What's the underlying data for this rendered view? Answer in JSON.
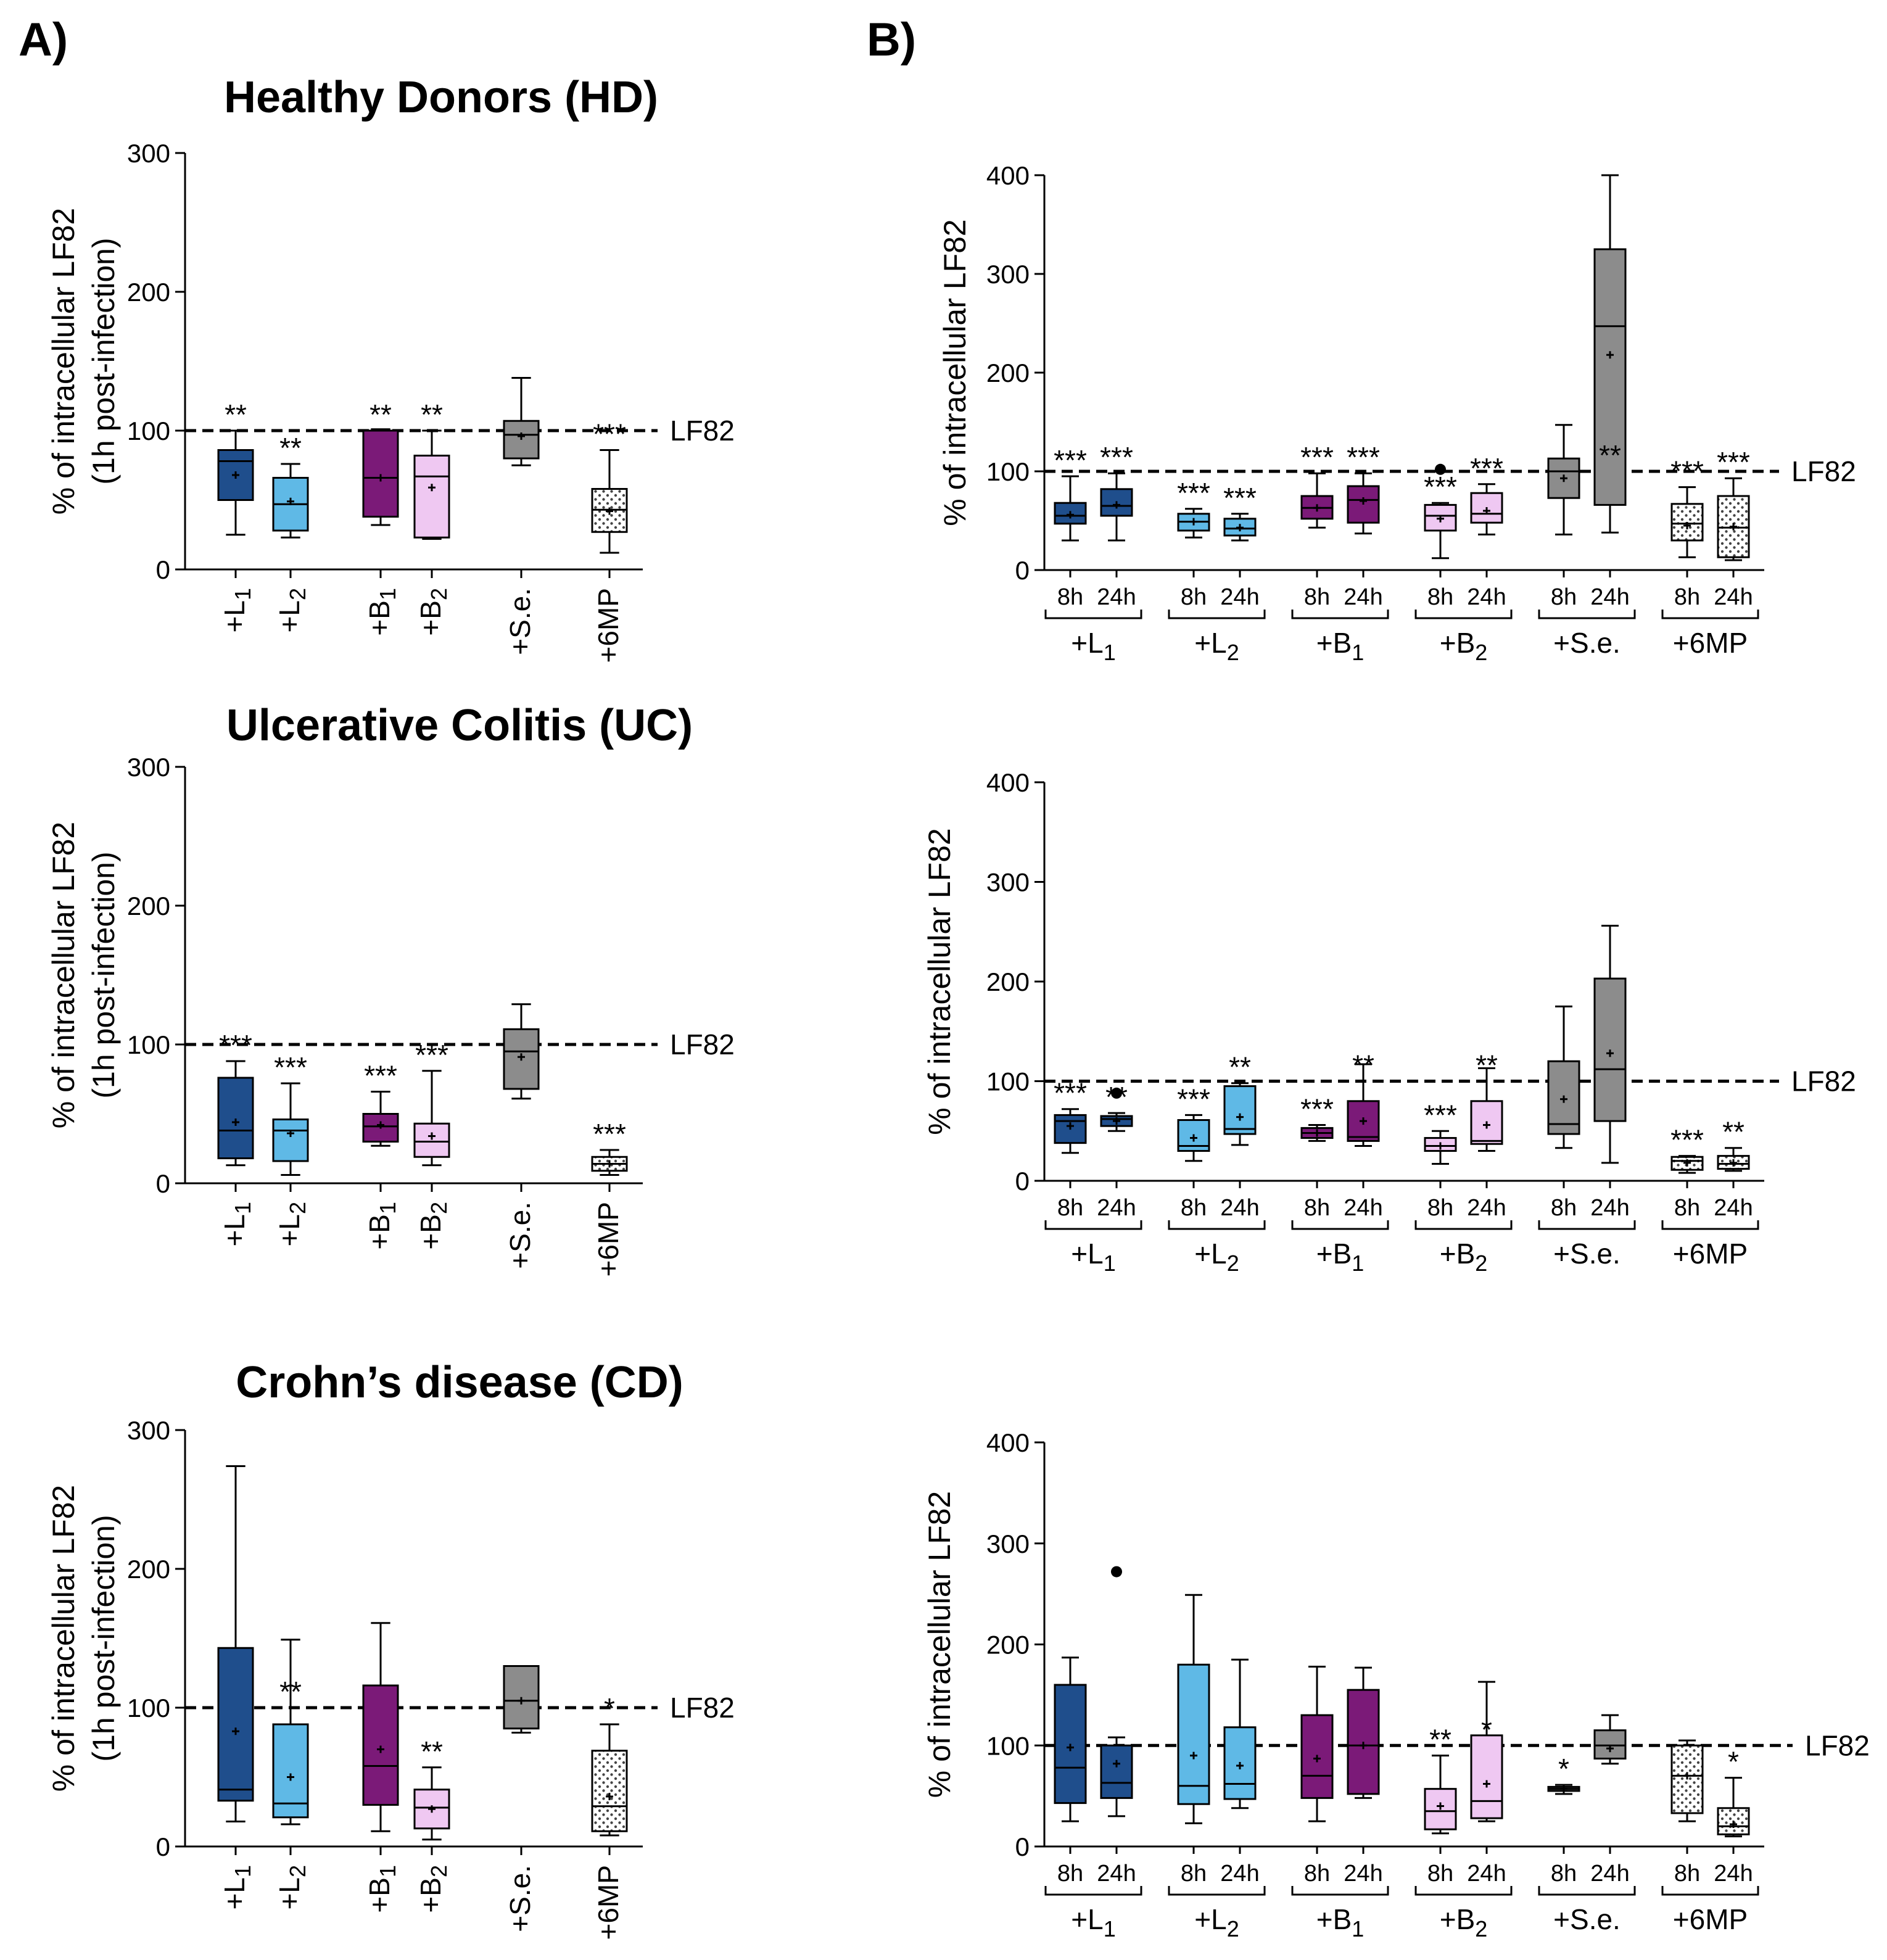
{
  "panel_labels": [
    "A)",
    "B)"
  ],
  "colors": {
    "L1": "#1f4e8c",
    "L2": "#5fb9e6",
    "B1": "#7b1a78",
    "B2": "#efc8f2",
    "Se": "#8c8c8c",
    "MP6": "#ffffff"
  },
  "chart_data": [
    {
      "id": "A_HD",
      "type": "box",
      "panel": "A)",
      "title": "Healthy Donors (HD)",
      "ylabel": "% of intracellular LF82",
      "ylabel2": "(1h post-infection)",
      "ylim": [
        0,
        300
      ],
      "yticks": [
        0,
        100,
        200,
        300
      ],
      "reference": {
        "value": 100,
        "label": "LF82"
      },
      "boxes": [
        {
          "group": "L",
          "sub": "1",
          "color": "L1",
          "min": 25,
          "q1": 50,
          "median": 78,
          "q3": 86,
          "max": 100,
          "mean": 68,
          "sig": "**"
        },
        {
          "group": "L",
          "sub": "2",
          "color": "L2",
          "min": 23,
          "q1": 28,
          "median": 47,
          "q3": 66,
          "max": 76,
          "mean": 49,
          "sig": "**"
        },
        {
          "group": "B",
          "sub": "1",
          "color": "B1",
          "min": 32,
          "q1": 38,
          "median": 66,
          "q3": 100,
          "max": 101,
          "mean": 66,
          "sig": "**"
        },
        {
          "group": "B",
          "sub": "2",
          "color": "B2",
          "min": 22,
          "q1": 23,
          "median": 67,
          "q3": 82,
          "max": 100,
          "mean": 59,
          "sig": "**"
        },
        {
          "group": "S.e.",
          "sub": "",
          "color": "Se",
          "min": 75,
          "q1": 80,
          "median": 97,
          "q3": 107,
          "max": 138,
          "mean": 96,
          "sig": ""
        },
        {
          "group": "6MP",
          "sub": "",
          "color": "MP6",
          "min": 12,
          "q1": 27,
          "median": 43,
          "q3": 58,
          "max": 86,
          "mean": 42,
          "sig": "***"
        }
      ]
    },
    {
      "id": "A_UC",
      "type": "box",
      "panel": "A)",
      "title": "Ulcerative Colitis (UC)",
      "ylabel": "% of intracellular LF82",
      "ylabel2": "(1h post-infection)",
      "ylim": [
        0,
        300
      ],
      "yticks": [
        0,
        100,
        200,
        300
      ],
      "reference": {
        "value": 100,
        "label": "LF82"
      },
      "boxes": [
        {
          "group": "L",
          "sub": "1",
          "color": "L1",
          "min": 13,
          "q1": 18,
          "median": 38,
          "q3": 76,
          "max": 88,
          "mean": 44,
          "sig": "***"
        },
        {
          "group": "L",
          "sub": "2",
          "color": "L2",
          "min": 6,
          "q1": 16,
          "median": 38,
          "q3": 46,
          "max": 72,
          "mean": 36,
          "sig": "***"
        },
        {
          "group": "B",
          "sub": "1",
          "color": "B1",
          "min": 27,
          "q1": 30,
          "median": 41,
          "q3": 50,
          "max": 66,
          "mean": 42,
          "sig": "***"
        },
        {
          "group": "B",
          "sub": "2",
          "color": "B2",
          "min": 13,
          "q1": 19,
          "median": 30,
          "q3": 43,
          "max": 81,
          "mean": 34,
          "sig": "***"
        },
        {
          "group": "S.e.",
          "sub": "",
          "color": "Se",
          "min": 61,
          "q1": 68,
          "median": 95,
          "q3": 111,
          "max": 129,
          "mean": 91,
          "sig": ""
        },
        {
          "group": "6MP",
          "sub": "",
          "color": "MP6",
          "min": 6,
          "q1": 9,
          "median": 14,
          "q3": 19,
          "max": 24,
          "mean": 14,
          "sig": "***"
        }
      ]
    },
    {
      "id": "A_CD",
      "type": "box",
      "panel": "A)",
      "title": "Crohn’s disease (CD)",
      "ylabel": "% of intracellular LF82",
      "ylabel2": "(1h post-infection)",
      "ylim": [
        0,
        300
      ],
      "yticks": [
        0,
        100,
        200,
        300
      ],
      "reference": {
        "value": 100,
        "label": "LF82"
      },
      "boxes": [
        {
          "group": "L",
          "sub": "1",
          "color": "L1",
          "min": 18,
          "q1": 33,
          "median": 41,
          "q3": 143,
          "max": 274,
          "mean": 83,
          "sig": ""
        },
        {
          "group": "L",
          "sub": "2",
          "color": "L2",
          "min": 16,
          "q1": 21,
          "median": 31,
          "q3": 88,
          "max": 149,
          "mean": 50,
          "sig": "**"
        },
        {
          "group": "B",
          "sub": "1",
          "color": "B1",
          "min": 11,
          "q1": 30,
          "median": 58,
          "q3": 116,
          "max": 161,
          "mean": 70,
          "sig": ""
        },
        {
          "group": "B",
          "sub": "2",
          "color": "B2",
          "min": 5,
          "q1": 13,
          "median": 28,
          "q3": 41,
          "max": 57,
          "mean": 27,
          "sig": "**"
        },
        {
          "group": "S.e.",
          "sub": "",
          "color": "Se",
          "min": 82,
          "q1": 85,
          "median": 105,
          "q3": 130,
          "max": 130,
          "mean": 105,
          "sig": ""
        },
        {
          "group": "6MP",
          "sub": "",
          "color": "MP6",
          "min": 8,
          "q1": 11,
          "median": 29,
          "q3": 69,
          "max": 88,
          "mean": 36,
          "sig": "*"
        }
      ]
    },
    {
      "id": "B_HD",
      "type": "box",
      "panel": "B)",
      "title": "",
      "ylabel": "% of intracellular LF82",
      "ylabel2": "",
      "ylim": [
        0,
        400
      ],
      "yticks": [
        0,
        100,
        200,
        300,
        400
      ],
      "reference": {
        "value": 100,
        "label": "LF82"
      },
      "groups": [
        {
          "label": "L",
          "sub": "1",
          "color": "L1",
          "boxes": [
            {
              "time": "8h",
              "min": 30,
              "q1": 47,
              "median": 55,
              "q3": 68,
              "max": 95,
              "mean": 56,
              "sig": "***"
            },
            {
              "time": "24h",
              "min": 30,
              "q1": 55,
              "median": 65,
              "q3": 82,
              "max": 98,
              "mean": 66,
              "sig": "***"
            }
          ]
        },
        {
          "label": "L",
          "sub": "2",
          "color": "L2",
          "boxes": [
            {
              "time": "8h",
              "min": 33,
              "q1": 40,
              "median": 49,
              "q3": 57,
              "max": 62,
              "mean": 49,
              "sig": "***"
            },
            {
              "time": "24h",
              "min": 30,
              "q1": 35,
              "median": 42,
              "q3": 52,
              "max": 57,
              "mean": 43,
              "sig": "***"
            }
          ]
        },
        {
          "label": "B",
          "sub": "1",
          "color": "B1",
          "boxes": [
            {
              "time": "8h",
              "min": 43,
              "q1": 52,
              "median": 63,
              "q3": 75,
              "max": 98,
              "mean": 63,
              "sig": "***"
            },
            {
              "time": "24h",
              "min": 37,
              "q1": 48,
              "median": 71,
              "q3": 85,
              "max": 98,
              "mean": 70,
              "sig": "***"
            }
          ]
        },
        {
          "label": "B",
          "sub": "2",
          "color": "B2",
          "boxes": [
            {
              "time": "8h",
              "min": 12,
              "q1": 40,
              "median": 55,
              "q3": 66,
              "max": 68,
              "mean": 52,
              "sig": "***",
              "outlier": 102
            },
            {
              "time": "24h",
              "min": 36,
              "q1": 48,
              "median": 57,
              "q3": 78,
              "max": 87,
              "mean": 60,
              "sig": "***"
            }
          ]
        },
        {
          "label": "S.e.",
          "sub": "",
          "color": "Se",
          "boxes": [
            {
              "time": "8h",
              "min": 36,
              "q1": 73,
              "median": 100,
              "q3": 113,
              "max": 147,
              "mean": 93,
              "sig": ""
            },
            {
              "time": "24h",
              "min": 38,
              "q1": 66,
              "median": 247,
              "q3": 325,
              "max": 400,
              "mean": 218,
              "sig": "**"
            }
          ]
        },
        {
          "label": "6MP",
          "sub": "",
          "color": "MP6",
          "boxes": [
            {
              "time": "8h",
              "min": 13,
              "q1": 30,
              "median": 47,
              "q3": 67,
              "max": 84,
              "mean": 45,
              "sig": "***"
            },
            {
              "time": "24h",
              "min": 10,
              "q1": 13,
              "median": 43,
              "q3": 75,
              "max": 93,
              "mean": 44,
              "sig": "***"
            }
          ]
        }
      ]
    },
    {
      "id": "B_UC",
      "type": "box",
      "panel": "B)",
      "title": "",
      "ylabel": "% of intracellular LF82",
      "ylabel2": "",
      "ylim": [
        0,
        400
      ],
      "yticks": [
        0,
        100,
        200,
        300,
        400
      ],
      "reference": {
        "value": 100,
        "label": "LF82"
      },
      "groups": [
        {
          "label": "L",
          "sub": "1",
          "color": "L1",
          "boxes": [
            {
              "time": "8h",
              "min": 28,
              "q1": 38,
              "median": 60,
              "q3": 66,
              "max": 72,
              "mean": 55,
              "sig": "***"
            },
            {
              "time": "24h",
              "min": 50,
              "q1": 55,
              "median": 62,
              "q3": 65,
              "max": 68,
              "mean": 60,
              "sig": "**",
              "outlier": 88
            }
          ]
        },
        {
          "label": "L",
          "sub": "2",
          "color": "L2",
          "boxes": [
            {
              "time": "8h",
              "min": 20,
              "q1": 30,
              "median": 35,
              "q3": 61,
              "max": 66,
              "mean": 43,
              "sig": "***"
            },
            {
              "time": "24h",
              "min": 36,
              "q1": 47,
              "median": 52,
              "q3": 95,
              "max": 98,
              "mean": 64,
              "sig": "**"
            }
          ]
        },
        {
          "label": "B",
          "sub": "1",
          "color": "B1",
          "boxes": [
            {
              "time": "8h",
              "min": 40,
              "q1": 43,
              "median": 48,
              "q3": 53,
              "max": 56,
              "mean": 48,
              "sig": "***"
            },
            {
              "time": "24h",
              "min": 35,
              "q1": 40,
              "median": 44,
              "q3": 80,
              "max": 117,
              "mean": 60,
              "sig": "**"
            }
          ]
        },
        {
          "label": "B",
          "sub": "2",
          "color": "B2",
          "boxes": [
            {
              "time": "8h",
              "min": 17,
              "q1": 30,
              "median": 35,
              "q3": 43,
              "max": 50,
              "mean": 35,
              "sig": "***"
            },
            {
              "time": "24h",
              "min": 30,
              "q1": 37,
              "median": 40,
              "q3": 80,
              "max": 113,
              "mean": 56,
              "sig": "**"
            }
          ]
        },
        {
          "label": "S.e.",
          "sub": "",
          "color": "Se",
          "boxes": [
            {
              "time": "8h",
              "min": 33,
              "q1": 47,
              "median": 57,
              "q3": 120,
              "max": 175,
              "mean": 82,
              "sig": ""
            },
            {
              "time": "24h",
              "min": 18,
              "q1": 60,
              "median": 112,
              "q3": 203,
              "max": 256,
              "mean": 128,
              "sig": ""
            }
          ]
        },
        {
          "label": "6MP",
          "sub": "",
          "color": "MP6",
          "boxes": [
            {
              "time": "8h",
              "min": 8,
              "q1": 11,
              "median": 20,
              "q3": 24,
              "max": 25,
              "mean": 18,
              "sig": "***"
            },
            {
              "time": "24h",
              "min": 10,
              "q1": 12,
              "median": 17,
              "q3": 25,
              "max": 33,
              "mean": 18,
              "sig": "**"
            }
          ]
        }
      ]
    },
    {
      "id": "B_CD",
      "type": "box",
      "panel": "B)",
      "title": "",
      "ylabel": "% of intracellular LF82",
      "ylabel2": "",
      "ylim": [
        0,
        400
      ],
      "yticks": [
        0,
        100,
        200,
        300,
        400
      ],
      "reference": {
        "value": 100,
        "label": "LF82"
      },
      "groups": [
        {
          "label": "L",
          "sub": "1",
          "color": "L1",
          "boxes": [
            {
              "time": "8h",
              "min": 25,
              "q1": 43,
              "median": 78,
              "q3": 160,
              "max": 187,
              "mean": 98,
              "sig": ""
            },
            {
              "time": "24h",
              "min": 30,
              "q1": 48,
              "median": 63,
              "q3": 100,
              "max": 108,
              "mean": 82,
              "sig": "",
              "outlier": 272
            }
          ]
        },
        {
          "label": "L",
          "sub": "2",
          "color": "L2",
          "boxes": [
            {
              "time": "8h",
              "min": 23,
              "q1": 42,
              "median": 60,
              "q3": 180,
              "max": 249,
              "mean": 90,
              "sig": ""
            },
            {
              "time": "24h",
              "min": 38,
              "q1": 47,
              "median": 62,
              "q3": 118,
              "max": 185,
              "mean": 80,
              "sig": ""
            }
          ]
        },
        {
          "label": "B",
          "sub": "1",
          "color": "B1",
          "boxes": [
            {
              "time": "8h",
              "min": 25,
              "q1": 48,
              "median": 70,
              "q3": 130,
              "max": 178,
              "mean": 87,
              "sig": ""
            },
            {
              "time": "24h",
              "min": 48,
              "q1": 52,
              "median": 100,
              "q3": 155,
              "max": 177,
              "mean": 100,
              "sig": ""
            }
          ]
        },
        {
          "label": "B",
          "sub": "2",
          "color": "B2",
          "boxes": [
            {
              "time": "8h",
              "min": 13,
              "q1": 17,
              "median": 35,
              "q3": 57,
              "max": 90,
              "mean": 40,
              "sig": "**"
            },
            {
              "time": "24h",
              "min": 25,
              "q1": 28,
              "median": 45,
              "q3": 110,
              "max": 163,
              "mean": 62,
              "sig": "*"
            }
          ]
        },
        {
          "label": "S.e.",
          "sub": "",
          "color": "Se",
          "boxes": [
            {
              "time": "8h",
              "min": 52,
              "q1": 55,
              "median": 57,
              "q3": 59,
              "max": 61,
              "mean": 57,
              "sig": "*"
            },
            {
              "time": "24h",
              "min": 82,
              "q1": 87,
              "median": 100,
              "q3": 115,
              "max": 130,
              "mean": 97,
              "sig": ""
            }
          ]
        },
        {
          "label": "6MP",
          "sub": "",
          "color": "MP6",
          "boxes": [
            {
              "time": "8h",
              "min": 25,
              "q1": 33,
              "median": 70,
              "q3": 100,
              "max": 105,
              "mean": 70,
              "sig": ""
            },
            {
              "time": "24h",
              "min": 10,
              "q1": 12,
              "median": 20,
              "q3": 38,
              "max": 68,
              "mean": 22,
              "sig": "*"
            }
          ]
        }
      ]
    }
  ]
}
